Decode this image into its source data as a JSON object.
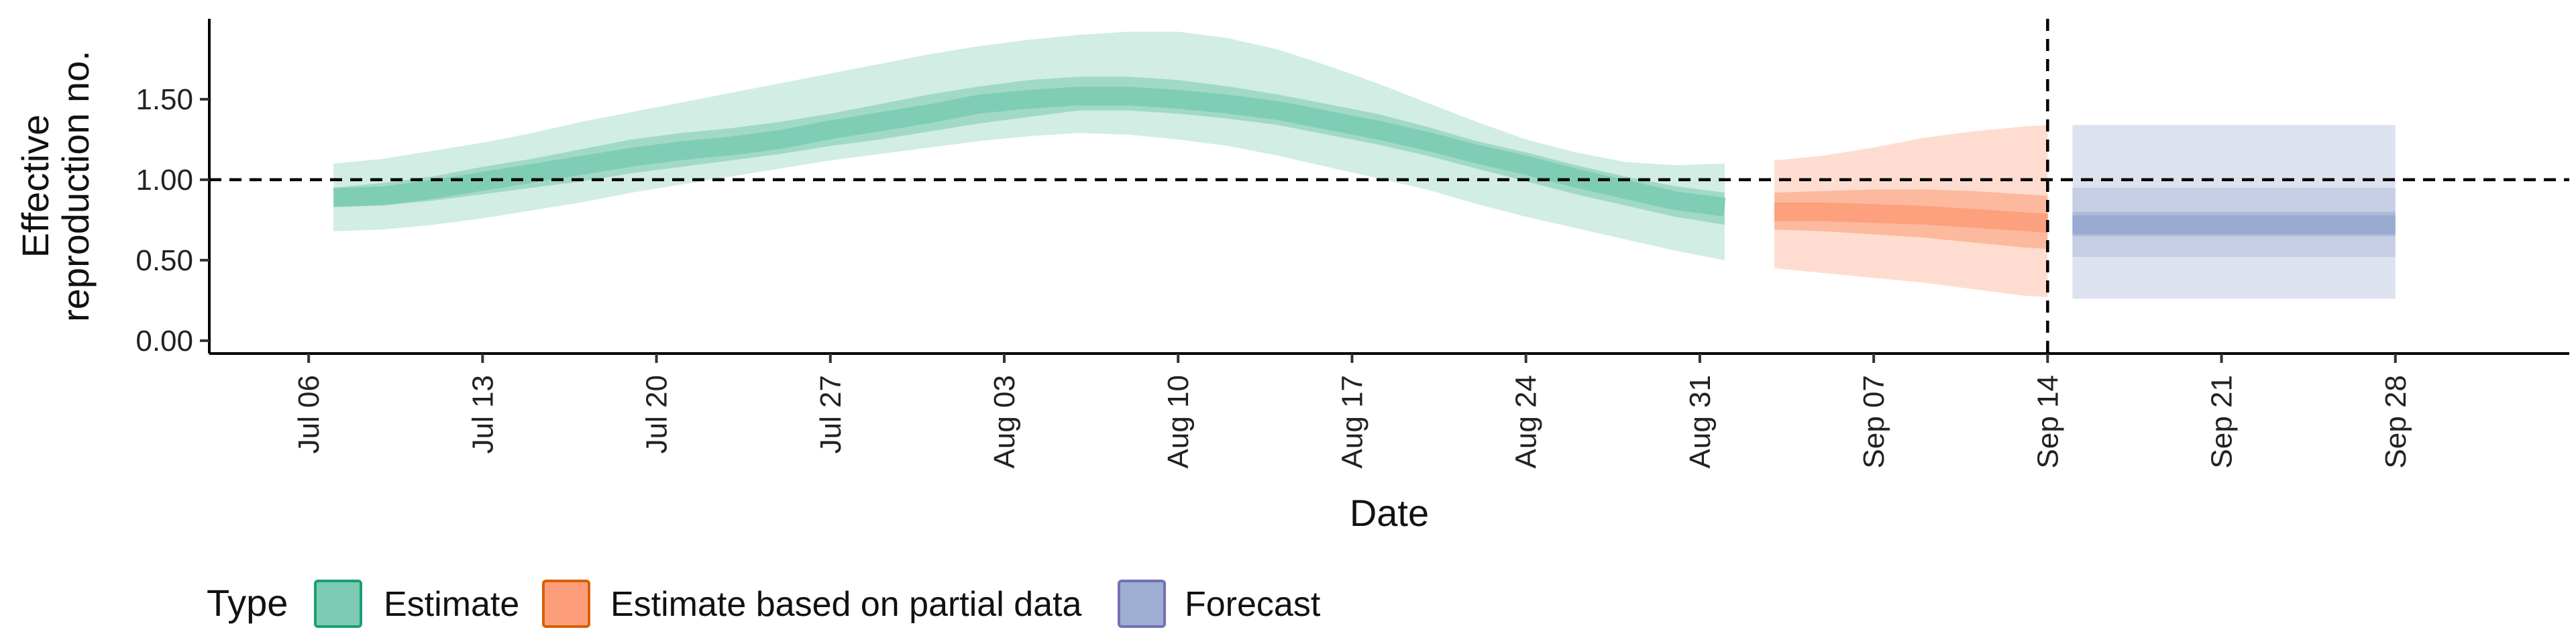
{
  "chart_data": {
    "type": "area",
    "title": "",
    "xlabel": "Date",
    "ylabel": "Effective reproduction no.",
    "ylabel_lines": [
      "Effective",
      "reproduction no."
    ],
    "x_tick_labels": [
      "Jul 06",
      "Jul 13",
      "Jul 20",
      "Jul 27",
      "Aug 03",
      "Aug 10",
      "Aug 17",
      "Aug 24",
      "Aug 31",
      "Sep 07",
      "Sep 14",
      "Sep 21",
      "Sep 28"
    ],
    "y_tick_labels": [
      "0.00",
      "0.50",
      "1.00",
      "1.50"
    ],
    "ylim": [
      -0.08,
      2.0
    ],
    "xlim": [
      "2020-07-02",
      "2020-10-05"
    ],
    "reference_line_y": 1.0,
    "reference_line_x": "2020-09-14",
    "grid": false,
    "legend_title": "Type",
    "legend_position": "bottom-left",
    "series": [
      {
        "name": "Estimate",
        "color": "#1b9e77",
        "fill": "#66c2a5",
        "dates": [
          "2020-07-07",
          "2020-07-09",
          "2020-07-11",
          "2020-07-13",
          "2020-07-15",
          "2020-07-17",
          "2020-07-19",
          "2020-07-21",
          "2020-07-23",
          "2020-07-25",
          "2020-07-27",
          "2020-07-29",
          "2020-07-31",
          "2020-08-02",
          "2020-08-04",
          "2020-08-06",
          "2020-08-08",
          "2020-08-10",
          "2020-08-12",
          "2020-08-14",
          "2020-08-16",
          "2020-08-18",
          "2020-08-20",
          "2020-08-22",
          "2020-08-24",
          "2020-08-26",
          "2020-08-28",
          "2020-08-30",
          "2020-09-01"
        ],
        "median": [
          0.89,
          0.9,
          0.94,
          0.99,
          1.04,
          1.09,
          1.14,
          1.18,
          1.21,
          1.25,
          1.31,
          1.36,
          1.41,
          1.47,
          1.5,
          1.52,
          1.52,
          1.5,
          1.47,
          1.43,
          1.37,
          1.31,
          1.24,
          1.16,
          1.09,
          1.01,
          0.94,
          0.87,
          0.83
        ],
        "lower_50": [
          0.83,
          0.84,
          0.87,
          0.91,
          0.95,
          0.99,
          1.04,
          1.08,
          1.12,
          1.16,
          1.21,
          1.25,
          1.3,
          1.35,
          1.39,
          1.43,
          1.43,
          1.41,
          1.38,
          1.34,
          1.28,
          1.22,
          1.15,
          1.07,
          0.99,
          0.91,
          0.84,
          0.77,
          0.72
        ],
        "upper_50": [
          0.95,
          0.98,
          1.02,
          1.08,
          1.13,
          1.19,
          1.25,
          1.29,
          1.32,
          1.36,
          1.41,
          1.47,
          1.53,
          1.58,
          1.62,
          1.64,
          1.64,
          1.62,
          1.58,
          1.53,
          1.47,
          1.41,
          1.33,
          1.24,
          1.17,
          1.09,
          1.02,
          0.96,
          0.92
        ],
        "lower_90": [
          0.68,
          0.69,
          0.72,
          0.76,
          0.81,
          0.86,
          0.92,
          0.97,
          1.02,
          1.07,
          1.12,
          1.16,
          1.2,
          1.24,
          1.27,
          1.29,
          1.28,
          1.25,
          1.21,
          1.15,
          1.08,
          1.01,
          0.94,
          0.85,
          0.77,
          0.7,
          0.63,
          0.56,
          0.5
        ],
        "upper_90": [
          1.1,
          1.13,
          1.18,
          1.23,
          1.29,
          1.36,
          1.42,
          1.48,
          1.54,
          1.6,
          1.66,
          1.72,
          1.78,
          1.83,
          1.87,
          1.9,
          1.92,
          1.92,
          1.88,
          1.81,
          1.71,
          1.6,
          1.48,
          1.36,
          1.25,
          1.17,
          1.11,
          1.09,
          1.1
        ]
      },
      {
        "name": "Estimate based on partial data",
        "color": "#d95f02",
        "fill": "#fc8d62",
        "dates": [
          "2020-09-03",
          "2020-09-05",
          "2020-09-07",
          "2020-09-09",
          "2020-09-11",
          "2020-09-13",
          "2020-09-14"
        ],
        "median": [
          0.8,
          0.8,
          0.79,
          0.78,
          0.76,
          0.74,
          0.73
        ],
        "lower_50": [
          0.69,
          0.68,
          0.66,
          0.64,
          0.61,
          0.58,
          0.57
        ],
        "upper_50": [
          0.92,
          0.93,
          0.94,
          0.94,
          0.93,
          0.91,
          0.9
        ],
        "lower_90": [
          0.45,
          0.42,
          0.39,
          0.36,
          0.32,
          0.28,
          0.27
        ],
        "upper_90": [
          1.12,
          1.15,
          1.2,
          1.26,
          1.3,
          1.33,
          1.34
        ]
      },
      {
        "name": "Forecast",
        "color": "#7570b3",
        "fill": "#8da0cb",
        "dates": [
          "2020-09-15",
          "2020-09-28"
        ],
        "median": [
          0.72,
          0.72
        ],
        "lower_50": [
          0.65,
          0.65
        ],
        "upper_50": [
          0.8,
          0.8
        ],
        "lower_75": [
          0.52,
          0.52
        ],
        "upper_75": [
          0.95,
          0.95
        ],
        "lower_90": [
          0.26,
          0.26
        ],
        "upper_90": [
          1.34,
          1.34
        ]
      }
    ]
  }
}
